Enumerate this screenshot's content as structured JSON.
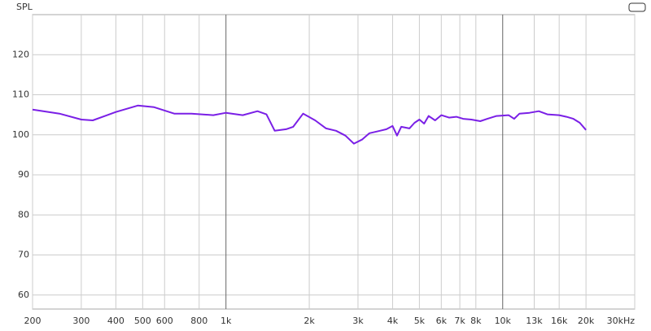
{
  "chart_data": {
    "type": "line",
    "y_label": "SPL",
    "log_x": true,
    "grid": true,
    "xlim": [
      200,
      30000
    ],
    "ylim": [
      56.5,
      130
    ],
    "xticks": [
      200,
      300,
      400,
      500,
      600,
      800,
      {
        "value": 1000,
        "label": "1k"
      },
      {
        "value": 2000,
        "label": "2k"
      },
      {
        "value": 3000,
        "label": "3k"
      },
      {
        "value": 4000,
        "label": "4k"
      },
      {
        "value": 5000,
        "label": "5k"
      },
      {
        "value": 6000,
        "label": "6k"
      },
      {
        "value": 7000,
        "label": "7k"
      },
      {
        "value": 8000,
        "label": "8k"
      },
      {
        "value": 10000,
        "label": "10k"
      },
      {
        "value": 13000,
        "label": "13k"
      },
      {
        "value": 16000,
        "label": "16k"
      },
      {
        "value": 20000,
        "label": "20k"
      },
      {
        "value": 30000,
        "label": "30kHz"
      }
    ],
    "yticks": [
      60,
      70,
      80,
      90,
      100,
      110,
      120
    ],
    "x": [
      200,
      250,
      300,
      330,
      400,
      480,
      550,
      650,
      750,
      900,
      1000,
      1150,
      1300,
      1400,
      1500,
      1650,
      1750,
      1900,
      2100,
      2300,
      2500,
      2700,
      2900,
      3100,
      3300,
      3600,
      3800,
      4000,
      4150,
      4300,
      4600,
      4800,
      5000,
      5200,
      5400,
      5700,
      6000,
      6400,
      6800,
      7200,
      7700,
      8300,
      8800,
      9500,
      10500,
      11000,
      11500,
      12500,
      13500,
      14500,
      16000,
      17000,
      18000,
      19000,
      20000
    ],
    "series": [
      {
        "color": "#7a1fe6",
        "values": [
          106.3,
          105.3,
          103.8,
          103.6,
          105.7,
          107.3,
          106.9,
          105.3,
          105.3,
          104.9,
          105.5,
          104.9,
          105.9,
          105.1,
          101,
          101.4,
          102,
          105.3,
          103.6,
          101.6,
          101,
          99.8,
          97.8,
          98.8,
          100.4,
          101,
          101.4,
          102.2,
          99.8,
          102,
          101.6,
          103,
          103.8,
          102.8,
          104.7,
          103.6,
          104.9,
          104.3,
          104.5,
          104,
          103.8,
          103.4,
          104,
          104.7,
          104.9,
          104,
          105.3,
          105.5,
          105.9,
          105.1,
          104.9,
          104.5,
          104,
          103,
          101.2
        ]
      }
    ]
  }
}
